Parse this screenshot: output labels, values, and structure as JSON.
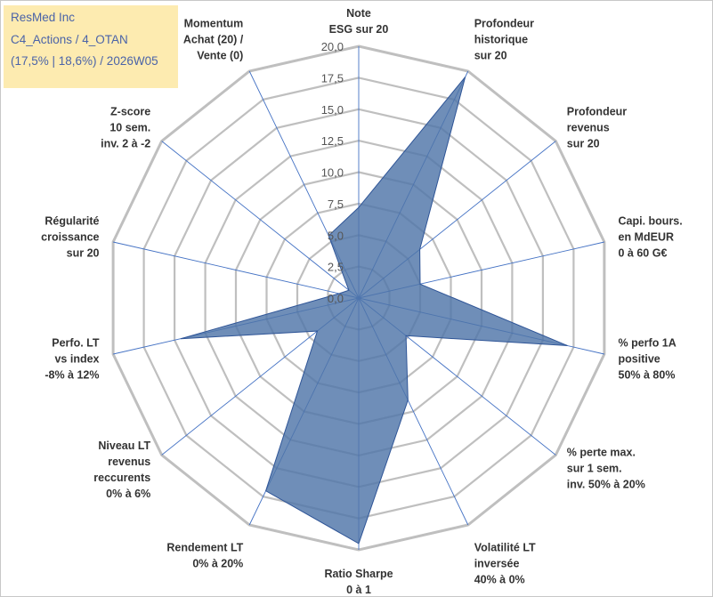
{
  "info": {
    "line1": "ResMed Inc",
    "line2": "C4_Actions / 4_OTAN",
    "line3": "(17,5% | 18,6%) / 2026W05"
  },
  "chart_data": {
    "type": "radar",
    "title": "",
    "ylim": [
      0,
      20
    ],
    "ticks": [
      "0,0",
      "2,5",
      "5,0",
      "7,5",
      "10,0",
      "12,5",
      "15,0",
      "17,5",
      "20,0"
    ],
    "categories": [
      [
        "Note",
        "ESG sur 20"
      ],
      [
        "Profondeur",
        "historique",
        "sur 20"
      ],
      [
        "Profondeur",
        "revenus",
        "sur 20"
      ],
      [
        "Capi. bours.",
        "en MdEUR",
        "0 à 60 G€"
      ],
      [
        "% perfo 1A",
        "positive",
        "50% à 80%"
      ],
      [
        "% perte max.",
        "sur 1 sem.",
        "inv. 50% à 20%"
      ],
      [
        "Volatilité LT",
        "inversée",
        "40% à 0%"
      ],
      [
        "Ratio Sharpe",
        "0 à 1"
      ],
      [
        "Rendement LT",
        "0% à 20%"
      ],
      [
        "Niveau LT",
        "revenus",
        "reccurents",
        "0% à 6%"
      ],
      [
        "Perfo. LT",
        "vs index",
        "-8% à 12%"
      ],
      [
        "Régularité",
        "croissance",
        "sur 20"
      ],
      [
        "Z-score",
        "10 sem.",
        "inv. 2 à -2"
      ],
      [
        "Momentum",
        "Achat (20) /",
        "Vente (0)"
      ]
    ],
    "series": [
      {
        "name": "ResMed Inc",
        "values": [
          7.2,
          19.5,
          6.2,
          5.0,
          17.0,
          4.8,
          9.0,
          19.5,
          17.0,
          4.2,
          14.5,
          1.6,
          1.0,
          5.5
        ]
      }
    ],
    "colors": {
      "fill": "#4f75a8",
      "stroke": "#2f5597",
      "grid": "#bfbfbf",
      "spoke": "#4472c4"
    }
  }
}
